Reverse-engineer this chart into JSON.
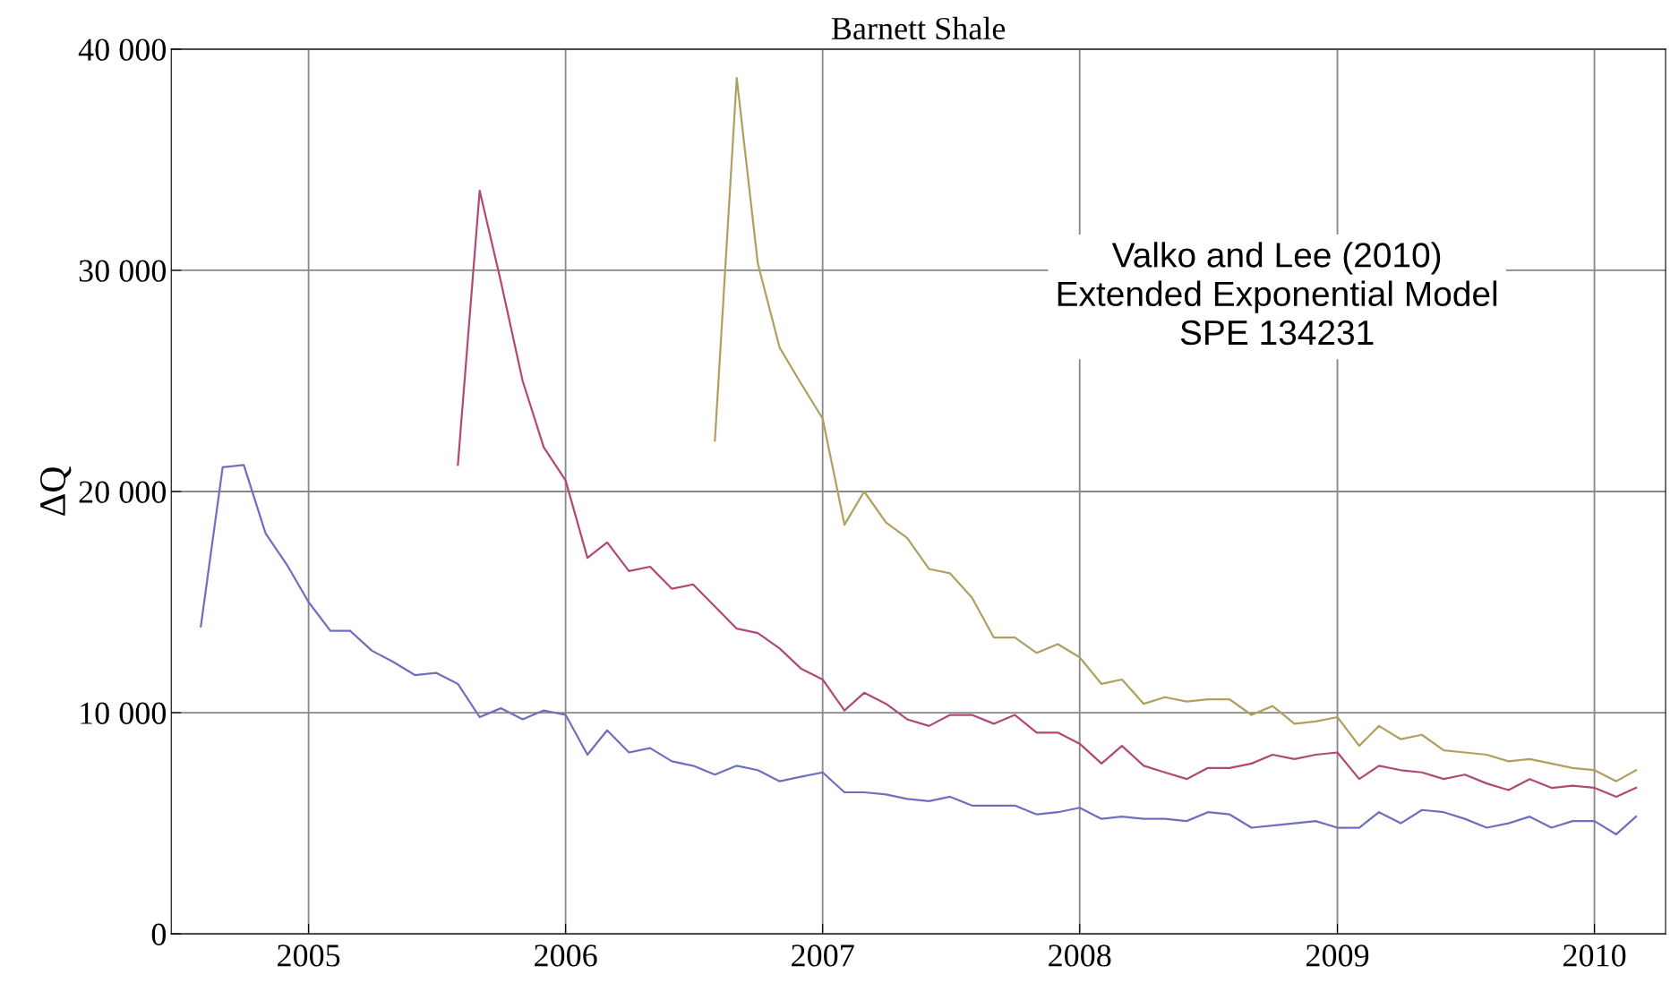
{
  "chart_data": {
    "type": "line",
    "title": "Barnett Shale",
    "ylabel": "ΔQ",
    "annotations": [
      "Valko and Lee (2010)\nExtended Exponential Model\nSPE 134231"
    ],
    "xlim": [
      "2004-06-20",
      "2010-04-12"
    ],
    "xticks": [
      {
        "value": "2005-01-01",
        "label": "2005"
      },
      {
        "value": "2006-01-01",
        "label": "2006"
      },
      {
        "value": "2007-01-01",
        "label": "2007"
      },
      {
        "value": "2008-01-01",
        "label": "2008"
      },
      {
        "value": "2009-01-01",
        "label": "2009"
      },
      {
        "value": "2010-01-01",
        "label": "2010"
      }
    ],
    "ylim": [
      0,
      40000
    ],
    "yticks": [
      {
        "value": 0,
        "label": "0"
      },
      {
        "value": 10000,
        "label": "10 000"
      },
      {
        "value": 20000,
        "label": "20 000"
      },
      {
        "value": 30000,
        "label": "30 000"
      },
      {
        "value": 40000,
        "label": "40 000"
      }
    ],
    "grid": true,
    "series": [
      {
        "color": "#6f6fc0",
        "x": [
          "2004-08",
          "2004-09",
          "2004-10",
          "2004-11",
          "2004-12",
          "2005-01",
          "2005-02",
          "2005-03",
          "2005-04",
          "2005-05",
          "2005-06",
          "2005-07",
          "2005-08",
          "2005-09",
          "2005-10",
          "2005-11",
          "2005-12",
          "2006-01",
          "2006-02",
          "2006-03",
          "2006-04",
          "2006-05",
          "2006-06",
          "2006-07",
          "2006-08",
          "2006-09",
          "2006-10",
          "2006-11",
          "2006-12",
          "2007-01",
          "2007-02",
          "2007-03",
          "2007-04",
          "2007-05",
          "2007-06",
          "2007-07",
          "2007-08",
          "2007-09",
          "2007-10",
          "2007-11",
          "2007-12",
          "2008-01",
          "2008-02",
          "2008-03",
          "2008-04",
          "2008-05",
          "2008-06",
          "2008-07",
          "2008-08",
          "2008-09",
          "2008-10",
          "2008-11",
          "2008-12",
          "2009-01",
          "2009-02",
          "2009-03",
          "2009-04",
          "2009-05",
          "2009-06",
          "2009-07",
          "2009-08",
          "2009-09",
          "2009-10",
          "2009-11",
          "2009-12",
          "2010-01",
          "2010-02",
          "2010-03"
        ],
        "values": [
          13900,
          21100,
          21200,
          18100,
          16700,
          15000,
          13700,
          13700,
          12800,
          12300,
          11700,
          11800,
          11300,
          9800,
          10200,
          9700,
          10100,
          9900,
          8100,
          9200,
          8200,
          8400,
          7800,
          7600,
          7200,
          7600,
          7400,
          6900,
          7100,
          7300,
          6400,
          6400,
          6300,
          6100,
          6000,
          6200,
          5800,
          5800,
          5800,
          5400,
          5500,
          5700,
          5200,
          5300,
          5200,
          5200,
          5100,
          5500,
          5400,
          4800,
          4900,
          5000,
          5100,
          4800,
          4800,
          5500,
          5000,
          5600,
          5500,
          5200,
          4800,
          5000,
          5300,
          4800,
          5100,
          5100,
          4500,
          5300
        ]
      },
      {
        "color": "#b0497a",
        "x": [
          "2005-08",
          "2005-09",
          "2005-10",
          "2005-11",
          "2005-12",
          "2006-01",
          "2006-02",
          "2006-03",
          "2006-04",
          "2006-05",
          "2006-06",
          "2006-07",
          "2006-08",
          "2006-09",
          "2006-10",
          "2006-11",
          "2006-12",
          "2007-01",
          "2007-02",
          "2007-03",
          "2007-04",
          "2007-05",
          "2007-06",
          "2007-07",
          "2007-08",
          "2007-09",
          "2007-10",
          "2007-11",
          "2007-12",
          "2008-01",
          "2008-02",
          "2008-03",
          "2008-04",
          "2008-05",
          "2008-06",
          "2008-07",
          "2008-08",
          "2008-09",
          "2008-10",
          "2008-11",
          "2008-12",
          "2009-01",
          "2009-02",
          "2009-03",
          "2009-04",
          "2009-05",
          "2009-06",
          "2009-07",
          "2009-08",
          "2009-09",
          "2009-10",
          "2009-11",
          "2009-12",
          "2010-01",
          "2010-02",
          "2010-03"
        ],
        "values": [
          21200,
          33600,
          29500,
          25000,
          22000,
          20500,
          17000,
          17700,
          16400,
          16600,
          15600,
          15800,
          14800,
          13800,
          13600,
          12900,
          12000,
          11500,
          10100,
          10900,
          10400,
          9700,
          9400,
          9900,
          9900,
          9500,
          9900,
          9100,
          9100,
          8600,
          7700,
          8500,
          7600,
          7300,
          7000,
          7500,
          7500,
          7700,
          8100,
          7900,
          8100,
          8200,
          7000,
          7600,
          7400,
          7300,
          7000,
          7200,
          6800,
          6500,
          7000,
          6600,
          6700,
          6600,
          6200,
          6600
        ]
      },
      {
        "color": "#b0a060",
        "x": [
          "2006-08",
          "2006-09",
          "2006-10",
          "2006-11",
          "2006-12",
          "2007-01",
          "2007-02",
          "2007-03",
          "2007-04",
          "2007-05",
          "2007-06",
          "2007-07",
          "2007-08",
          "2007-09",
          "2007-10",
          "2007-11",
          "2007-12",
          "2008-01",
          "2008-02",
          "2008-03",
          "2008-04",
          "2008-05",
          "2008-06",
          "2008-07",
          "2008-08",
          "2008-09",
          "2008-10",
          "2008-11",
          "2008-12",
          "2009-01",
          "2009-02",
          "2009-03",
          "2009-04",
          "2009-05",
          "2009-06",
          "2009-07",
          "2009-08",
          "2009-09",
          "2009-10",
          "2009-11",
          "2009-12",
          "2010-01",
          "2010-02",
          "2010-03"
        ],
        "values": [
          22300,
          38700,
          30300,
          26500,
          24900,
          23300,
          18500,
          20000,
          18600,
          17900,
          16500,
          16300,
          15200,
          13400,
          13400,
          12700,
          13100,
          12500,
          11300,
          11500,
          10400,
          10700,
          10500,
          10600,
          10600,
          9900,
          10300,
          9500,
          9600,
          9800,
          8500,
          9400,
          8800,
          9000,
          8300,
          8200,
          8100,
          7800,
          7900,
          7700,
          7500,
          7400,
          6900,
          7400
        ]
      }
    ]
  }
}
